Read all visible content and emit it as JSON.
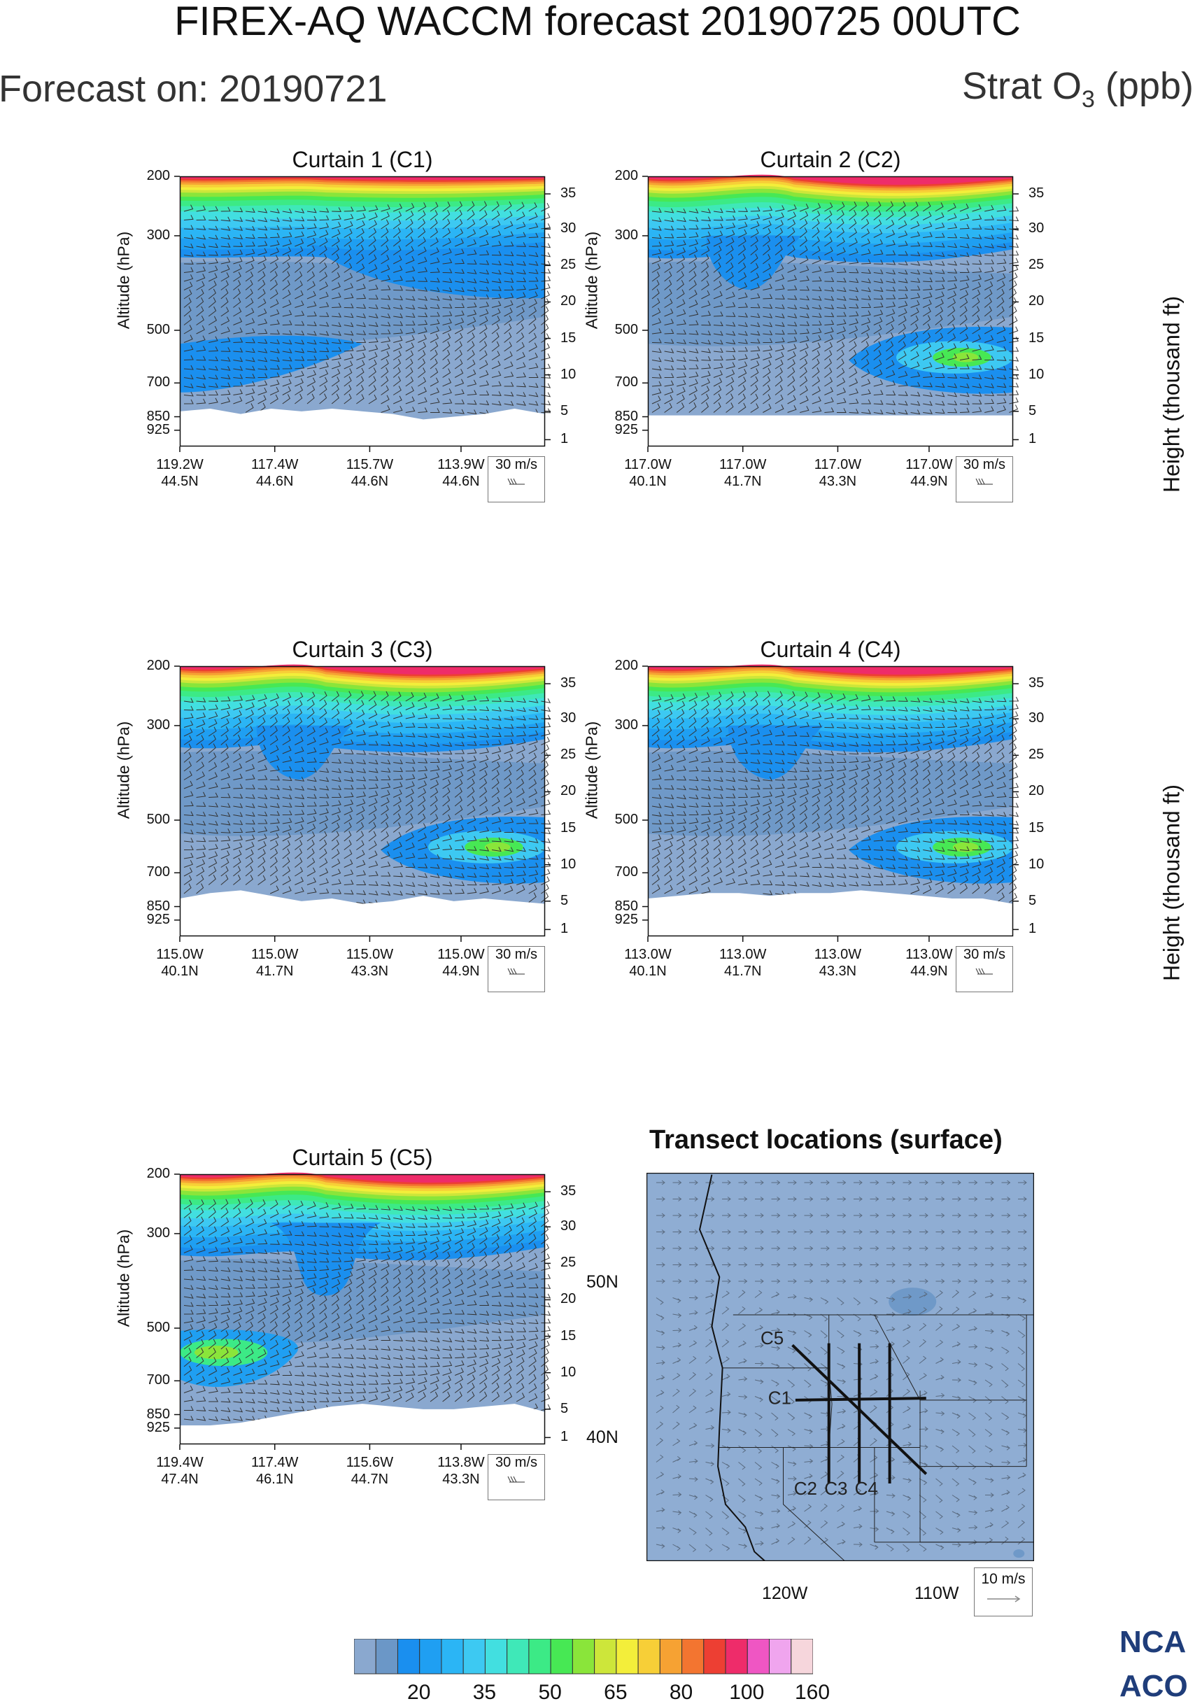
{
  "header": {
    "title": "FIREX-AQ WACCM forecast 20190725 00UTC",
    "forecast_on": "Forecast on: 20190721",
    "variable_prefix": "Strat O",
    "variable_sub": "3",
    "variable_suffix": " (ppb)"
  },
  "labels": {
    "ylabel_left": "Altitude (hPa)",
    "ylabel_right": "Height (thousand ft)",
    "ref_vector": "30 m/s",
    "map_ref_vector": "10 m/s"
  },
  "chart_data": [
    {
      "type": "heatmap",
      "title": "Curtain 1 (C1)",
      "ylabel": "Altitude (hPa)",
      "y2label": "Height (thousand ft)",
      "pressure_ticks": [
        "200",
        "300",
        "500",
        "700",
        "850",
        "925"
      ],
      "height_ticks": [
        "35",
        "30",
        "25",
        "20",
        "15",
        "10",
        "5",
        "1"
      ],
      "x_ticks": [
        {
          "lon": "119.2W",
          "lat": "44.5N"
        },
        {
          "lon": "117.4W",
          "lat": "44.6N"
        },
        {
          "lon": "115.7W",
          "lat": "44.6N"
        },
        {
          "lon": "113.9W",
          "lat": "44.6N"
        }
      ],
      "ref_vector": "30 m/s",
      "features": [
        "stratospheric O3 gradient near 200-300 hPa",
        "low-O3 tongue 500-700 hPa on western side"
      ]
    },
    {
      "type": "heatmap",
      "title": "Curtain 2 (C2)",
      "ylabel": "Altitude (hPa)",
      "y2label": "Height (thousand ft)",
      "pressure_ticks": [
        "200",
        "300",
        "500",
        "700",
        "850",
        "925"
      ],
      "height_ticks": [
        "35",
        "30",
        "25",
        "20",
        "15",
        "10",
        "5",
        "1"
      ],
      "x_ticks": [
        {
          "lon": "117.0W",
          "lat": "40.1N"
        },
        {
          "lon": "117.0W",
          "lat": "41.7N"
        },
        {
          "lon": "117.0W",
          "lat": "43.3N"
        },
        {
          "lon": "117.0W",
          "lat": "44.9N"
        }
      ],
      "ref_vector": "30 m/s",
      "features": [
        "tropopause fold ~40.9N",
        "intrusion maximum ~60-65 ppb near 600 hPa at northern end"
      ]
    },
    {
      "type": "heatmap",
      "title": "Curtain 3 (C3)",
      "ylabel": "Altitude (hPa)",
      "y2label": "Height (thousand ft)",
      "pressure_ticks": [
        "200",
        "300",
        "500",
        "700",
        "850",
        "925"
      ],
      "height_ticks": [
        "35",
        "30",
        "25",
        "20",
        "15",
        "10",
        "5",
        "1"
      ],
      "x_ticks": [
        {
          "lon": "115.0W",
          "lat": "40.1N"
        },
        {
          "lon": "115.0W",
          "lat": "41.7N"
        },
        {
          "lon": "115.0W",
          "lat": "43.3N"
        },
        {
          "lon": "115.0W",
          "lat": "44.9N"
        }
      ],
      "ref_vector": "30 m/s",
      "features": [
        "tropopause fold ~41.5N",
        "intrusion maximum ~60-65 ppb near 600 hPa at northern end"
      ]
    },
    {
      "type": "heatmap",
      "title": "Curtain 4 (C4)",
      "ylabel": "Altitude (hPa)",
      "y2label": "Height (thousand ft)",
      "pressure_ticks": [
        "200",
        "300",
        "500",
        "700",
        "850",
        "925"
      ],
      "height_ticks": [
        "35",
        "30",
        "25",
        "20",
        "15",
        "10",
        "5",
        "1"
      ],
      "x_ticks": [
        {
          "lon": "113.0W",
          "lat": "40.1N"
        },
        {
          "lon": "113.0W",
          "lat": "41.7N"
        },
        {
          "lon": "113.0W",
          "lat": "43.3N"
        },
        {
          "lon": "113.0W",
          "lat": "44.9N"
        }
      ],
      "ref_vector": "30 m/s",
      "features": [
        "tropopause fold ~41.7N",
        "intrusion maximum ~60-65 ppb near 600 hPa at northern end"
      ]
    },
    {
      "type": "heatmap",
      "title": "Curtain 5 (C5)",
      "ylabel": "Altitude (hPa)",
      "y2label": "Height (thousand ft)",
      "pressure_ticks": [
        "200",
        "300",
        "500",
        "700",
        "850",
        "925"
      ],
      "height_ticks": [
        "35",
        "30",
        "25",
        "20",
        "15",
        "10",
        "5",
        "1"
      ],
      "x_ticks": [
        {
          "lon": "119.4W",
          "lat": "47.4N"
        },
        {
          "lon": "117.4W",
          "lat": "46.1N"
        },
        {
          "lon": "115.6W",
          "lat": "44.7N"
        },
        {
          "lon": "113.8W",
          "lat": "43.3N"
        }
      ],
      "ref_vector": "30 m/s",
      "features": [
        "tropopause fold ~46N",
        "intrusion maximum ~60-65 ppb near 600 hPa at northwestern end"
      ]
    },
    {
      "type": "map",
      "title": "Transect locations (surface)",
      "lat_ticks": [
        "50N",
        "40N"
      ],
      "lon_ticks": [
        "120W",
        "110W"
      ],
      "ref_vector": "10 m/s",
      "transects": [
        {
          "name": "C1",
          "from": [
            -119.2,
            44.5
          ],
          "to": [
            -110.6,
            44.6
          ]
        },
        {
          "name": "C2",
          "from": [
            -117.0,
            40.1
          ],
          "to": [
            -117.0,
            47.5
          ]
        },
        {
          "name": "C3",
          "from": [
            -115.0,
            40.1
          ],
          "to": [
            -115.0,
            47.5
          ]
        },
        {
          "name": "C4",
          "from": [
            -113.0,
            40.1
          ],
          "to": [
            -113.0,
            47.5
          ]
        },
        {
          "name": "C5",
          "from": [
            -119.4,
            47.4
          ],
          "to": [
            -110.6,
            40.6
          ]
        }
      ]
    }
  ],
  "colorbar": {
    "levels": [
      "20",
      "35",
      "50",
      "65",
      "80",
      "100",
      "160"
    ],
    "colors": [
      "#8aa8cf",
      "#6b97c7",
      "#1a8fef",
      "#1f9ff2",
      "#2bb5f5",
      "#3dc9f2",
      "#42dfe0",
      "#3fe8b8",
      "#3cea86",
      "#47e854",
      "#8ae53a",
      "#cde63a",
      "#f3ee3a",
      "#f7cf37",
      "#f6a233",
      "#f37530",
      "#ed3f33",
      "#ee2c6a",
      "#ef56c3",
      "#f0a5ee",
      "#f6d6dc"
    ]
  },
  "logo": {
    "line1": "NCA",
    "line2": "ACO"
  }
}
